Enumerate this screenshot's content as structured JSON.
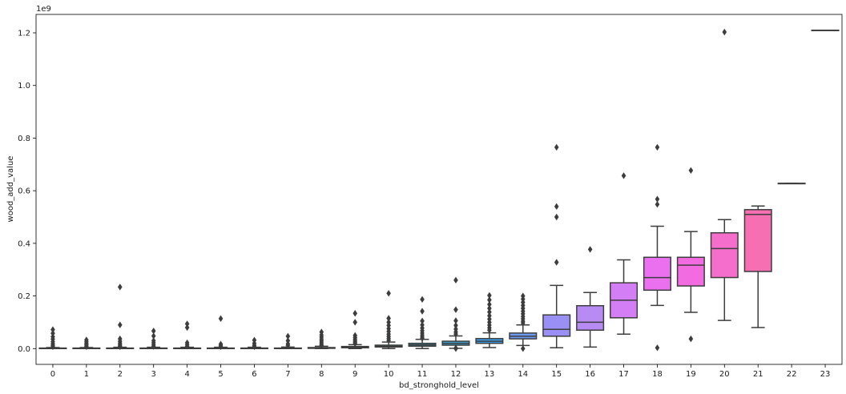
{
  "chart_data": {
    "type": "box",
    "xlabel": "bd_stronghold_level",
    "ylabel": "wood_add_value",
    "y_offset_label": "1e9",
    "y_unit_scale": 1000000000,
    "ylim": [
      -0.06,
      1.27
    ],
    "yticks": [
      0.0,
      0.2,
      0.4,
      0.6,
      0.8,
      1.0,
      1.2
    ],
    "ytick_labels": [
      "0.0",
      "0.2",
      "0.4",
      "0.6",
      "0.8",
      "1.0",
      "1.2"
    ],
    "grid": false,
    "categories": [
      "0",
      "1",
      "2",
      "3",
      "4",
      "5",
      "6",
      "7",
      "8",
      "9",
      "10",
      "11",
      "12",
      "13",
      "14",
      "15",
      "16",
      "17",
      "18",
      "19",
      "20",
      "21",
      "22",
      "23"
    ],
    "boxes": [
      {
        "x": "0",
        "color": "#f77189",
        "q1": 0,
        "median": 0.001,
        "q3": 0.002,
        "whisker_low": 0,
        "whisker_high": 0.004,
        "outliers": [
          0.072,
          0.058,
          0.045,
          0.036,
          0.026,
          0.018,
          0.012,
          0.007
        ]
      },
      {
        "x": "1",
        "color": "#f7754f",
        "q1": 0,
        "median": 0.001,
        "q3": 0.002,
        "whisker_low": 0,
        "whisker_high": 0.004,
        "outliers": [
          0.033,
          0.026,
          0.02,
          0.015,
          0.01,
          0.007
        ]
      },
      {
        "x": "2",
        "color": "#dc8932",
        "q1": 0,
        "median": 0.001,
        "q3": 0.002,
        "whisker_low": 0,
        "whisker_high": 0.005,
        "outliers": [
          0.234,
          0.09,
          0.037,
          0.028,
          0.021,
          0.015,
          0.01,
          0.007
        ]
      },
      {
        "x": "3",
        "color": "#c39532",
        "q1": 0,
        "median": 0.001,
        "q3": 0.002,
        "whisker_low": 0,
        "whisker_high": 0.005,
        "outliers": [
          0.067,
          0.048,
          0.03,
          0.022,
          0.014,
          0.008
        ]
      },
      {
        "x": "4",
        "color": "#ae9d31",
        "q1": 0,
        "median": 0.001,
        "q3": 0.002,
        "whisker_low": 0,
        "whisker_high": 0.005,
        "outliers": [
          0.094,
          0.08,
          0.022,
          0.015,
          0.009
        ]
      },
      {
        "x": "5",
        "color": "#97a431",
        "q1": 0,
        "median": 0.001,
        "q3": 0.002,
        "whisker_low": 0,
        "whisker_high": 0.005,
        "outliers": [
          0.114,
          0.017,
          0.011,
          0.007
        ]
      },
      {
        "x": "6",
        "color": "#77ab31",
        "q1": 0,
        "median": 0.001,
        "q3": 0.002,
        "whisker_low": 0,
        "whisker_high": 0.005,
        "outliers": [
          0.032,
          0.02,
          0.012,
          0.007
        ]
      },
      {
        "x": "7",
        "color": "#31b33e",
        "q1": 0,
        "median": 0.001,
        "q3": 0.002,
        "whisker_low": 0,
        "whisker_high": 0.006,
        "outliers": [
          0.047,
          0.03,
          0.018,
          0.012
        ]
      },
      {
        "x": "8",
        "color": "#33b07a",
        "q1": 0.001,
        "median": 0.002,
        "q3": 0.004,
        "whisker_low": 0,
        "whisker_high": 0.009,
        "outliers": [
          0.063,
          0.052,
          0.044,
          0.036,
          0.029,
          0.022,
          0.016,
          0.012
        ]
      },
      {
        "x": "9",
        "color": "#35ad97",
        "q1": 0.003,
        "median": 0.005,
        "q3": 0.008,
        "whisker_low": 0,
        "whisker_high": 0.015,
        "outliers": [
          0.134,
          0.1,
          0.05,
          0.042,
          0.035,
          0.029,
          0.024,
          0.019
        ]
      },
      {
        "x": "10",
        "color": "#36abad",
        "q1": 0.006,
        "median": 0.009,
        "q3": 0.013,
        "whisker_low": 0,
        "whisker_high": 0.025,
        "outliers": [
          0.21,
          0.115,
          0.1,
          0.088,
          0.076,
          0.065,
          0.055,
          0.046,
          0.038,
          0.031
        ]
      },
      {
        "x": "11",
        "color": "#37a8c0",
        "q1": 0.009,
        "median": 0.014,
        "q3": 0.02,
        "whisker_low": 0,
        "whisker_high": 0.035,
        "outliers": [
          0.187,
          0.142,
          0.105,
          0.09,
          0.078,
          0.068,
          0.059,
          0.051,
          0.044,
          0.039
        ]
      },
      {
        "x": "12",
        "color": "#39a4d3",
        "q1": 0.013,
        "median": 0.02,
        "q3": 0.028,
        "whisker_low": 0.001,
        "whisker_high": 0.048,
        "outliers": [
          0.26,
          0.148,
          0.106,
          0.088,
          0.074,
          0.063,
          0.055,
          0.002,
          0.0
        ]
      },
      {
        "x": "13",
        "color": "#3ca0ec",
        "q1": 0.02,
        "median": 0.028,
        "q3": 0.038,
        "whisker_low": 0.004,
        "whisker_high": 0.06,
        "outliers": [
          0.202,
          0.185,
          0.168,
          0.153,
          0.139,
          0.125,
          0.112,
          0.1,
          0.089,
          0.079,
          0.07
        ]
      },
      {
        "x": "14",
        "color": "#6e9bf4",
        "q1": 0.037,
        "median": 0.047,
        "q3": 0.059,
        "whisker_low": 0.012,
        "whisker_high": 0.09,
        "outliers": [
          0.2,
          0.188,
          0.176,
          0.164,
          0.153,
          0.142,
          0.132,
          0.122,
          0.113,
          0.104,
          0.097,
          0.0
        ]
      },
      {
        "x": "15",
        "color": "#9a8ff4",
        "q1": 0.047,
        "median": 0.073,
        "q3": 0.128,
        "whisker_low": 0.003,
        "whisker_high": 0.24,
        "outliers": [
          0.765,
          0.54,
          0.5,
          0.328
        ]
      },
      {
        "x": "16",
        "color": "#b88bf4",
        "q1": 0.07,
        "median": 0.1,
        "q3": 0.163,
        "whisker_low": 0.006,
        "whisker_high": 0.213,
        "outliers": [
          0.377
        ]
      },
      {
        "x": "17",
        "color": "#d37ef4",
        "q1": 0.117,
        "median": 0.184,
        "q3": 0.25,
        "whisker_low": 0.055,
        "whisker_high": 0.337,
        "outliers": [
          0.657
        ]
      },
      {
        "x": "18",
        "color": "#ea70f0",
        "q1": 0.222,
        "median": 0.27,
        "q3": 0.347,
        "whisker_low": 0.164,
        "whisker_high": 0.465,
        "outliers": [
          0.765,
          0.568,
          0.548,
          0.003
        ]
      },
      {
        "x": "19",
        "color": "#f36be0",
        "q1": 0.238,
        "median": 0.317,
        "q3": 0.347,
        "whisker_low": 0.138,
        "whisker_high": 0.445,
        "outliers": [
          0.677,
          0.037
        ]
      },
      {
        "x": "20",
        "color": "#f56ecb",
        "q1": 0.27,
        "median": 0.38,
        "q3": 0.44,
        "whisker_low": 0.107,
        "whisker_high": 0.49,
        "outliers": [
          1.203
        ]
      },
      {
        "x": "21",
        "color": "#f66fb3",
        "q1": 0.293,
        "median": 0.51,
        "q3": 0.528,
        "whisker_low": 0.08,
        "whisker_high": 0.542,
        "outliers": []
      },
      {
        "x": "22",
        "color": "#f6709e",
        "q1": 0.628,
        "median": 0.628,
        "q3": 0.628,
        "whisker_low": 0.628,
        "whisker_high": 0.628,
        "outliers": []
      },
      {
        "x": "23",
        "color": "#f77189",
        "q1": 1.21,
        "median": 1.21,
        "q3": 1.21,
        "whisker_low": 1.21,
        "whisker_high": 1.21,
        "outliers": []
      }
    ]
  }
}
